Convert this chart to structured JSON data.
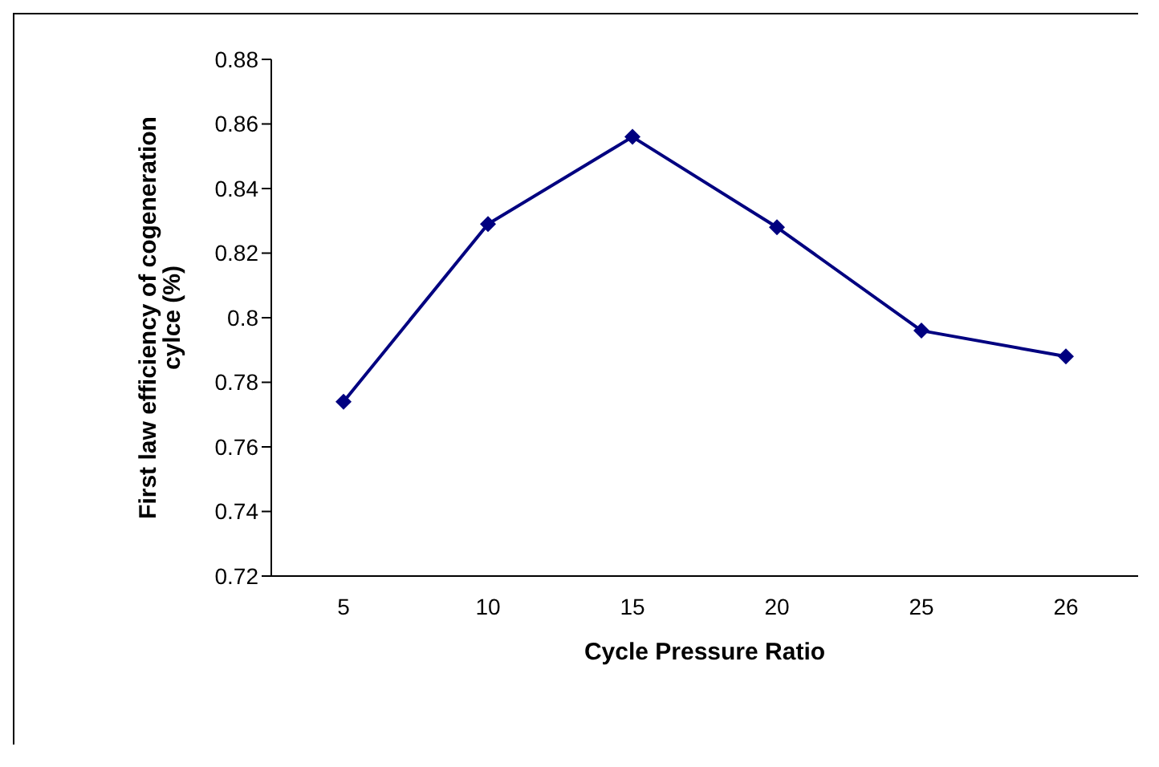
{
  "chart_data": {
    "type": "line",
    "xlabel": "Cycle Pressure Ratio",
    "ylabel": "First law efficiency of cogeneration cylce (%)",
    "categories": [
      "5",
      "10",
      "15",
      "20",
      "25",
      "26"
    ],
    "series": [
      {
        "color": "#000080",
        "values": [
          0.774,
          0.829,
          0.856,
          0.828,
          0.796,
          0.788
        ]
      }
    ],
    "ylim": [
      0.72,
      0.88
    ],
    "yticks": [
      0.72,
      0.74,
      0.76,
      0.78,
      0.8,
      0.82,
      0.84,
      0.86,
      0.88
    ],
    "grid": false,
    "legend": false,
    "marker": "diamond",
    "line_style": "solid"
  }
}
